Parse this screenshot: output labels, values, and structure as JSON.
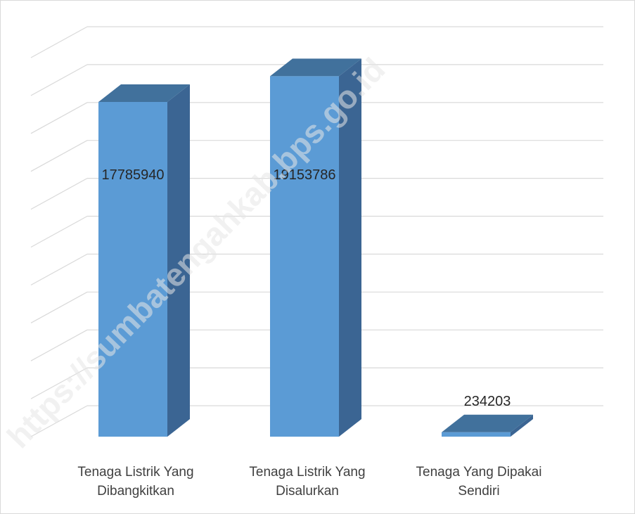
{
  "chart_data": {
    "type": "bar",
    "style": "3d-column",
    "categories": [
      [
        "Tenaga Listrik Yang",
        "Dibangkitkan"
      ],
      [
        "Tenaga Listrik Yang",
        "Disalurkan"
      ],
      [
        "Tenaga Yang Dipakai",
        "Sendiri"
      ]
    ],
    "values": [
      17785940,
      19153786,
      234203
    ],
    "data_labels": [
      "17785940",
      "19153786",
      "234203"
    ],
    "ylim": [
      0,
      22000000
    ],
    "grid": true,
    "legend": "none",
    "colors": {
      "front": "#5b9bd5",
      "side": "#3b6593",
      "top": "#41719c",
      "grid": "#d9d9d9"
    }
  },
  "watermark": "https://sumbatengahkab.bps.go.id"
}
